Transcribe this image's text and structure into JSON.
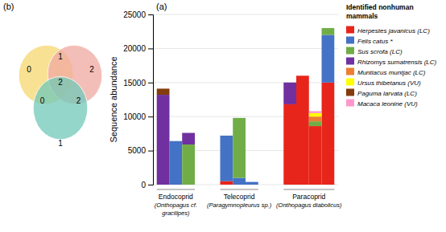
{
  "chart_data": [
    {
      "type": "bar",
      "stacked": true,
      "title": "(a)",
      "categories": [
        null,
        null,
        null,
        null,
        null,
        null,
        null,
        null,
        null,
        null
      ],
      "groups": [
        {
          "labels": [
            "Endocoprid",
            "(Onthopagus cf.",
            "gracilipes)"
          ],
          "size": 3
        },
        {
          "labels": [
            "Telecoprid",
            "(Paragymnopleurus sp.)"
          ],
          "size": 3
        },
        {
          "labels": [
            "Paracoprid",
            "(Onthopagus diabolicus)"
          ],
          "size": 4
        }
      ],
      "series": [
        {
          "name": "Herpestes javanicus (LC)",
          "color": "#e8251a",
          "values": [
            0,
            0,
            0,
            500,
            0,
            0,
            11800,
            16000,
            8600,
            15000
          ]
        },
        {
          "name": "Felis catus *",
          "color": "#4472c4",
          "values": [
            0,
            6400,
            0,
            6700,
            1000,
            400,
            0,
            0,
            0,
            7000
          ]
        },
        {
          "name": "Sus scrofa (LC)",
          "color": "#70ad47",
          "values": [
            0,
            0,
            5900,
            0,
            8800,
            0,
            0,
            0,
            700,
            1000
          ]
        },
        {
          "name": "Rhizomys sumatrensis (LC)",
          "color": "#7030a0",
          "values": [
            13200,
            0,
            1700,
            0,
            0,
            0,
            3200,
            0,
            0,
            0
          ]
        },
        {
          "name": "Muntiacus muntjac (LC)",
          "color": "#ed7d31",
          "values": [
            0,
            0,
            0,
            0,
            0,
            0,
            0,
            0,
            700,
            0
          ]
        },
        {
          "name": "Ursus thibetanus (VU)",
          "color": "#ffff00",
          "values": [
            0,
            0,
            0,
            0,
            0,
            0,
            0,
            0,
            500,
            0
          ]
        },
        {
          "name": "Paguma larvata (LC)",
          "color": "#843c0c",
          "values": [
            900,
            0,
            0,
            0,
            0,
            0,
            0,
            0,
            0,
            0
          ]
        },
        {
          "name": "Macaca leonine (VU)",
          "color": "#ff99cc",
          "values": [
            0,
            0,
            0,
            0,
            0,
            0,
            0,
            0,
            300,
            0
          ]
        }
      ],
      "ylabel": "Sequence abundance",
      "ylim": [
        0,
        25000
      ],
      "yticks": [
        0,
        5000,
        10000,
        15000,
        20000,
        25000
      ],
      "grid": true,
      "legend": "right",
      "legend_title": "Identified nonhuman\nmammals"
    },
    {
      "type": "venn",
      "title": "(b)",
      "values": [
        0,
        2,
        1,
        1,
        0,
        2,
        2
      ],
      "colors": [
        "#f5d76e",
        "#f0a8a0",
        "#70c8b8"
      ]
    }
  ]
}
